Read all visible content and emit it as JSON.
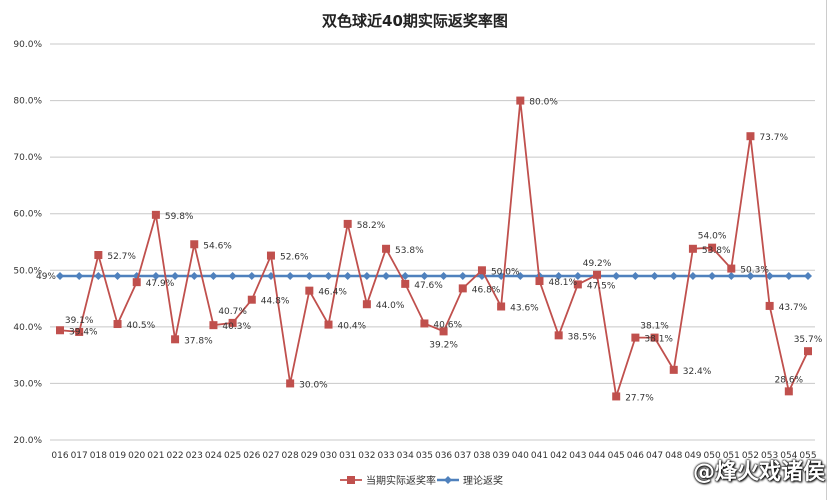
{
  "chart_data": {
    "type": "line",
    "title": "双色球近40期实际返奖率图",
    "categories": [
      "016",
      "017",
      "018",
      "019",
      "020",
      "021",
      "022",
      "023",
      "024",
      "025",
      "026",
      "027",
      "028",
      "029",
      "030",
      "031",
      "032",
      "033",
      "034",
      "035",
      "036",
      "037",
      "038",
      "039",
      "040",
      "041",
      "042",
      "043",
      "044",
      "045",
      "046",
      "047",
      "048",
      "049",
      "050",
      "051",
      "052",
      "053",
      "054",
      "055"
    ],
    "series": [
      {
        "name": "当期实际返奖率",
        "color": "#C0504D",
        "marker": "square",
        "values": [
          39.4,
          39.1,
          52.7,
          40.5,
          47.9,
          59.8,
          37.8,
          54.6,
          40.3,
          40.7,
          44.8,
          52.6,
          30.0,
          46.4,
          40.4,
          58.2,
          44.0,
          53.8,
          47.6,
          40.6,
          39.2,
          46.8,
          50.0,
          43.6,
          80.0,
          48.1,
          38.5,
          47.5,
          49.2,
          27.7,
          38.1,
          38.1,
          32.4,
          53.8,
          54.0,
          50.3,
          73.7,
          43.7,
          28.6,
          35.7
        ],
        "labels": [
          "39.4%",
          "39.1%",
          "52.7%",
          "40.5%",
          "47.9%",
          "59.8%",
          "37.8%",
          "54.6%",
          "40.3%",
          "40.7%",
          "44.8%",
          "52.6%",
          "30.0%",
          "46.4%",
          "40.4%",
          "58.2%",
          "44.0%",
          "53.8%",
          "47.6%",
          "40.6%",
          "39.2%",
          "46.8%",
          "50.0%",
          "43.6%",
          "80.0%",
          "48.1%",
          "38.5%",
          "47.5%",
          "49.2%",
          "27.7%",
          "38.1%",
          "38.1%",
          "32.4%",
          "53.8%",
          "54.0%",
          "50.3%",
          "73.7%",
          "43.7%",
          "28.6%",
          "35.7%"
        ]
      },
      {
        "name": "理论返奖",
        "color": "#4F81BD",
        "marker": "diamond",
        "value": 49,
        "label": "49%"
      }
    ],
    "yticks": [
      "20.0%",
      "30.0%",
      "40.0%",
      "50.0%",
      "60.0%",
      "70.0%",
      "80.0%",
      "90.0%"
    ],
    "ylim": [
      20,
      90
    ],
    "grid": true,
    "legend": "bottom"
  },
  "watermark": "@烽火戏诸侯"
}
